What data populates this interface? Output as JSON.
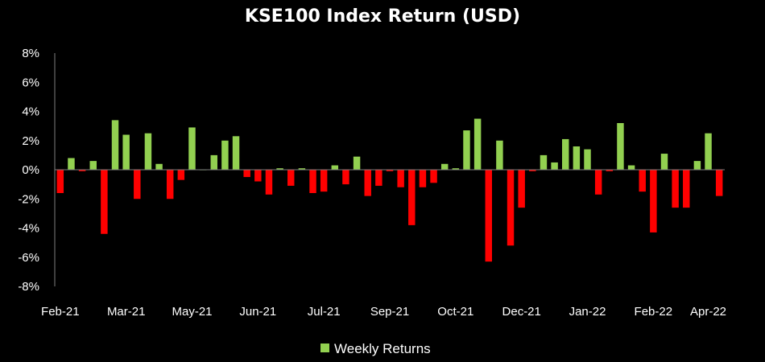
{
  "chart_data": {
    "type": "bar",
    "title": "KSE100 Index Return (USD)",
    "y_tick_labels": [
      "8%",
      "6%",
      "4%",
      "2%",
      "0%",
      "-2%",
      "-4%",
      "-6%",
      "-8%"
    ],
    "y_tick_values": [
      8,
      6,
      4,
      2,
      0,
      -2,
      -4,
      -6,
      -8
    ],
    "ylim": [
      -8,
      8
    ],
    "x_tick_labels": [
      "Feb-21",
      "Mar-21",
      "May-21",
      "Jun-21",
      "Jul-21",
      "Sep-21",
      "Oct-21",
      "Dec-21",
      "Jan-22",
      "Feb-22",
      "Apr-22"
    ],
    "x_tick_week_index": [
      0,
      6,
      12,
      18,
      24,
      30,
      36,
      42,
      48,
      54,
      59
    ],
    "grid": false,
    "legend_position": "bottom-center",
    "series": [
      {
        "name": "Weekly Returns",
        "positive_color": "#92D050",
        "negative_color": "#FF0000",
        "values": [
          -1.6,
          0.8,
          -0.1,
          0.6,
          -4.4,
          3.4,
          2.4,
          -2.0,
          2.5,
          0.4,
          -2.0,
          -0.7,
          2.9,
          0.0,
          1.0,
          2.0,
          2.3,
          -0.5,
          -0.8,
          -1.7,
          0.1,
          -1.1,
          0.1,
          -1.6,
          -1.5,
          0.3,
          -1.0,
          0.9,
          -1.8,
          -1.1,
          -0.1,
          -1.2,
          -3.8,
          -1.2,
          -0.9,
          0.4,
          0.1,
          2.7,
          3.5,
          -6.3,
          2.0,
          -5.2,
          -2.6,
          -0.1,
          1.0,
          0.5,
          2.1,
          1.6,
          1.4,
          -1.7,
          -0.1,
          3.2,
          0.3,
          -1.5,
          -4.3,
          1.1,
          -2.6,
          -2.6,
          0.6,
          2.5,
          -1.8
        ]
      }
    ]
  }
}
